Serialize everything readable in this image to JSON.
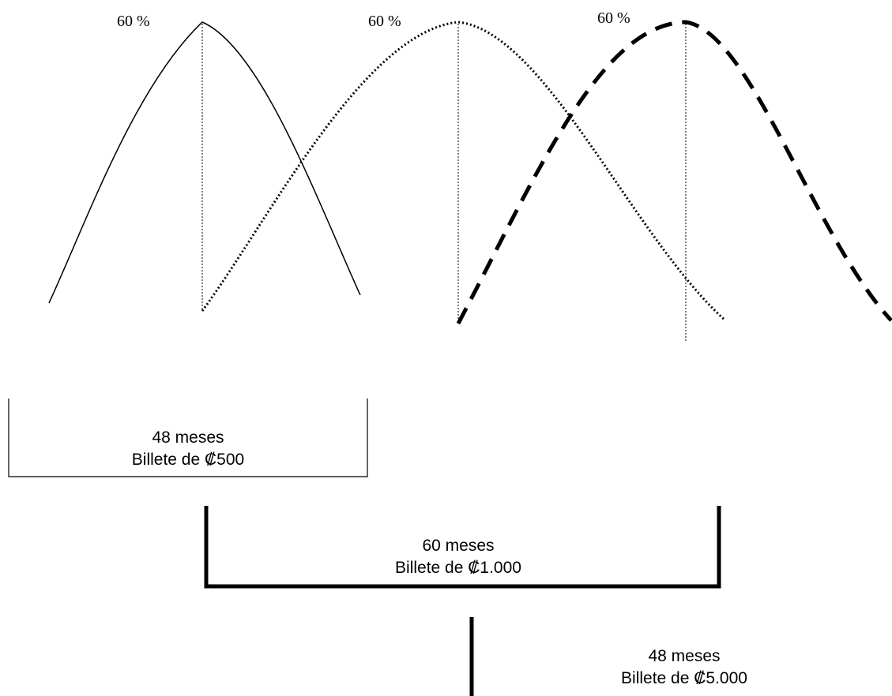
{
  "peak_labels": [
    "60 %",
    "60 %",
    "60 %"
  ],
  "periods": [
    {
      "duration": "48 meses",
      "note": "Billete de ₡500"
    },
    {
      "duration": "60 meses",
      "note": "Billete de ₡1.000"
    },
    {
      "duration": "48 meses",
      "note": "Billete de ₡5.000"
    }
  ],
  "curve_styles": [
    "solid",
    "dotted",
    "dashed"
  ]
}
